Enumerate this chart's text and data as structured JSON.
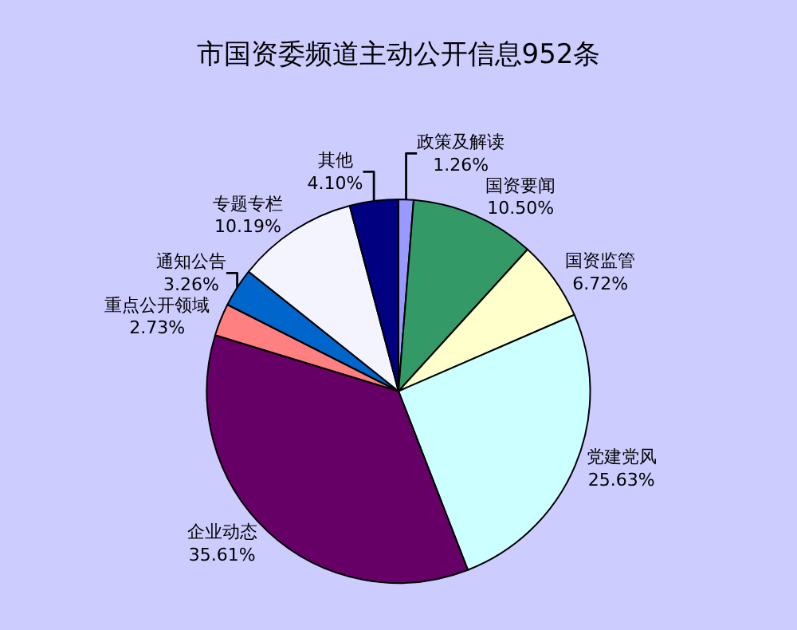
{
  "chart_data": {
    "type": "pie",
    "title": "市国资委频道主动公开信息952条",
    "categories": [
      "政策及解读",
      "国资要闻",
      "国资监管",
      "党建党风",
      "企业动态",
      "重点公开领域",
      "通知公告",
      "专题专栏",
      "其他"
    ],
    "values": [
      1.26,
      10.5,
      6.72,
      25.63,
      35.61,
      2.73,
      3.26,
      10.19,
      4.1
    ],
    "value_labels": [
      "1.26%",
      "10.50%",
      "6.72%",
      "25.63%",
      "35.61%",
      "2.73%",
      "3.26%",
      "10.19%",
      "4.10%"
    ],
    "colors": [
      "#9999ff",
      "#339966",
      "#ffffcc",
      "#ccffff",
      "#660066",
      "#ff8080",
      "#0066cc",
      "#f4f4ff",
      "#000080"
    ],
    "legend": false
  }
}
